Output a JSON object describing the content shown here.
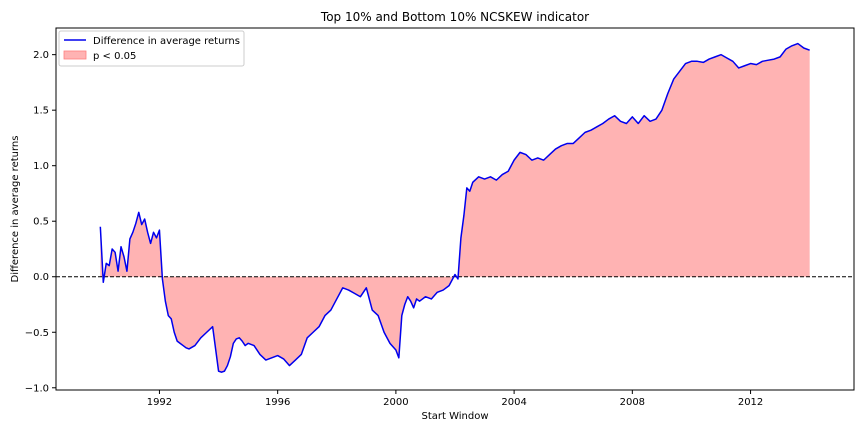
{
  "chart_data": {
    "type": "area",
    "title": "Top 10% and Bottom 10% NCSKEW indicator",
    "xlabel": "Start Window",
    "ylabel": "Difference in average returns",
    "xlim": [
      1988.5,
      2015.5
    ],
    "ylim": [
      -1.02,
      2.24
    ],
    "x_ticks": [
      1992,
      1996,
      2000,
      2004,
      2008,
      2012
    ],
    "y_ticks": [
      -1.0,
      -0.5,
      0.0,
      0.5,
      1.0,
      1.5,
      2.0
    ],
    "x_tick_labels": [
      "1992",
      "1996",
      "2000",
      "2004",
      "2008",
      "2012"
    ],
    "y_tick_labels": [
      "−1.0",
      "−0.5",
      "0.0",
      "0.5",
      "1.0",
      "1.5",
      "2.0"
    ],
    "reference_line": {
      "y": 0.0,
      "style": "dashed",
      "color": "#000000"
    },
    "legend": {
      "position": "top-left",
      "entries": [
        "Difference in average returns",
        "p < 0.05"
      ]
    },
    "series": [
      {
        "name": "Difference in average returns",
        "color": "#0000ee",
        "x": [
          1990.0,
          1990.1,
          1990.2,
          1990.3,
          1990.4,
          1990.5,
          1990.6,
          1990.7,
          1990.8,
          1990.9,
          1991.0,
          1991.1,
          1991.2,
          1991.3,
          1991.4,
          1991.5,
          1991.6,
          1991.7,
          1991.8,
          1991.9,
          1992.0,
          1992.1,
          1992.2,
          1992.3,
          1992.4,
          1992.5,
          1992.6,
          1992.7,
          1992.8,
          1992.9,
          1993.0,
          1993.2,
          1993.4,
          1993.6,
          1993.8,
          1994.0,
          1994.1,
          1994.2,
          1994.3,
          1994.4,
          1994.5,
          1994.6,
          1994.7,
          1994.8,
          1994.9,
          1995.0,
          1995.2,
          1995.4,
          1995.6,
          1995.8,
          1996.0,
          1996.2,
          1996.4,
          1996.6,
          1996.8,
          1997.0,
          1997.2,
          1997.4,
          1997.6,
          1997.8,
          1998.0,
          1998.2,
          1998.4,
          1998.6,
          1998.8,
          1999.0,
          1999.2,
          1999.4,
          1999.6,
          1999.8,
          2000.0,
          2000.1,
          2000.2,
          2000.3,
          2000.4,
          2000.5,
          2000.6,
          2000.7,
          2000.8,
          2001.0,
          2001.2,
          2001.4,
          2001.6,
          2001.8,
          2002.0,
          2002.1,
          2002.2,
          2002.3,
          2002.4,
          2002.5,
          2002.6,
          2002.8,
          2003.0,
          2003.2,
          2003.4,
          2003.6,
          2003.8,
          2004.0,
          2004.2,
          2004.4,
          2004.6,
          2004.8,
          2005.0,
          2005.2,
          2005.4,
          2005.6,
          2005.8,
          2006.0,
          2006.2,
          2006.4,
          2006.6,
          2006.8,
          2007.0,
          2007.2,
          2007.4,
          2007.6,
          2007.8,
          2008.0,
          2008.2,
          2008.4,
          2008.6,
          2008.8,
          2009.0,
          2009.2,
          2009.4,
          2009.6,
          2009.8,
          2010.0,
          2010.2,
          2010.4,
          2010.6,
          2010.8,
          2011.0,
          2011.2,
          2011.4,
          2011.6,
          2011.8,
          2012.0,
          2012.2,
          2012.4,
          2012.6,
          2012.8,
          2013.0,
          2013.2,
          2013.4,
          2013.6,
          2013.8,
          2014.0
        ],
        "y": [
          0.45,
          -0.05,
          0.12,
          0.1,
          0.25,
          0.22,
          0.05,
          0.27,
          0.18,
          0.05,
          0.34,
          0.4,
          0.48,
          0.58,
          0.47,
          0.52,
          0.4,
          0.3,
          0.4,
          0.35,
          0.42,
          -0.02,
          -0.22,
          -0.35,
          -0.38,
          -0.5,
          -0.58,
          -0.6,
          -0.62,
          -0.64,
          -0.65,
          -0.62,
          -0.55,
          -0.5,
          -0.45,
          -0.85,
          -0.86,
          -0.85,
          -0.8,
          -0.72,
          -0.6,
          -0.56,
          -0.55,
          -0.58,
          -0.62,
          -0.6,
          -0.62,
          -0.7,
          -0.75,
          -0.73,
          -0.71,
          -0.74,
          -0.8,
          -0.75,
          -0.7,
          -0.55,
          -0.5,
          -0.45,
          -0.35,
          -0.3,
          -0.2,
          -0.1,
          -0.12,
          -0.15,
          -0.18,
          -0.1,
          -0.3,
          -0.35,
          -0.5,
          -0.6,
          -0.66,
          -0.73,
          -0.35,
          -0.25,
          -0.18,
          -0.22,
          -0.28,
          -0.2,
          -0.22,
          -0.18,
          -0.2,
          -0.14,
          -0.12,
          -0.08,
          0.02,
          -0.02,
          0.35,
          0.55,
          0.8,
          0.77,
          0.85,
          0.9,
          0.88,
          0.9,
          0.87,
          0.92,
          0.95,
          1.05,
          1.12,
          1.1,
          1.05,
          1.07,
          1.05,
          1.1,
          1.15,
          1.18,
          1.2,
          1.2,
          1.25,
          1.3,
          1.32,
          1.35,
          1.38,
          1.42,
          1.45,
          1.4,
          1.38,
          1.44,
          1.38,
          1.45,
          1.4,
          1.42,
          1.5,
          1.65,
          1.78,
          1.85,
          1.92,
          1.94,
          1.94,
          1.93,
          1.96,
          1.98,
          2.0,
          1.97,
          1.94,
          1.88,
          1.9,
          1.92,
          1.91,
          1.94,
          1.95,
          1.96,
          1.98,
          2.05,
          2.08,
          2.1,
          2.06,
          2.04
        ]
      },
      {
        "name": "p < 0.05",
        "color": "#ff9999",
        "style": "shaded region between series and zero"
      }
    ]
  }
}
